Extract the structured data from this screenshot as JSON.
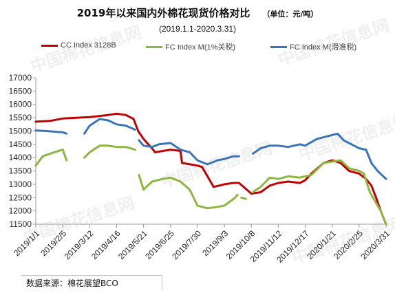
{
  "title": "2019年以来国内外棉花现货价格对比",
  "unit": "（单位：元/吨）",
  "subtitle": "(2019.1.1-2020.3.31)",
  "source": "数据来源：棉花展望BCO",
  "watermark": {
    "text": "中国棉花信息网",
    "site": "www.cottonchina.org.cn"
  },
  "chart_data": {
    "type": "line",
    "title": "2019年以来国内外棉花现货价格对比",
    "subtitle": "(2019.1.1-2020.3.31)",
    "unit": "元/吨",
    "x_tick_labels": [
      "2019/1/1",
      "2019/2/5",
      "2019/3/12",
      "2019/4/16",
      "2019/5/21",
      "2019/6/25",
      "2019/7/30",
      "2019/9/3",
      "2019/10/8",
      "2019/11/12",
      "2019/12/17",
      "2020/1/21",
      "2020/2/25",
      "2020/3/31"
    ],
    "ylim": [
      11500,
      17000
    ],
    "yticks": [
      11500,
      12000,
      12500,
      13000,
      13500,
      14000,
      14500,
      15000,
      15500,
      16000,
      16500,
      17000
    ],
    "grid": false,
    "legend_position": "top",
    "series": [
      {
        "name": "CC Index 3128B",
        "color": "#c00000",
        "points": [
          [
            "2019-01-01",
            15350
          ],
          [
            "2019-01-20",
            15380
          ],
          [
            "2019-02-05",
            15470
          ],
          [
            "2019-03-12",
            15520
          ],
          [
            "2019-04-05",
            15600
          ],
          [
            "2019-04-16",
            15650
          ],
          [
            "2019-04-28",
            15600
          ],
          [
            "2019-05-08",
            15450
          ],
          [
            "2019-05-14",
            15000
          ],
          [
            "2019-05-21",
            14700
          ],
          [
            "2019-06-01",
            14350
          ],
          [
            "2019-06-05",
            14200
          ],
          [
            "2019-06-25",
            14300
          ],
          [
            "2019-07-08",
            14250
          ],
          [
            "2019-07-10",
            13800
          ],
          [
            "2019-07-30",
            13700
          ],
          [
            "2019-08-05",
            13650
          ],
          [
            "2019-08-12",
            13300
          ],
          [
            "2019-08-20",
            12900
          ],
          [
            "2019-09-03",
            13000
          ],
          [
            "2019-09-15",
            13050
          ],
          [
            "2019-09-22",
            13050
          ],
          [
            "2019-09-28",
            12900
          ],
          [
            "2019-10-08",
            12650
          ],
          [
            "2019-10-20",
            12700
          ],
          [
            "2019-11-01",
            12950
          ],
          [
            "2019-11-12",
            13050
          ],
          [
            "2019-11-25",
            13100
          ],
          [
            "2019-12-10",
            13050
          ],
          [
            "2019-12-17",
            13150
          ],
          [
            "2019-12-25",
            13400
          ],
          [
            "2020-01-10",
            13800
          ],
          [
            "2020-01-21",
            13900
          ],
          [
            "2020-02-01",
            13800
          ],
          [
            "2020-02-12",
            13500
          ],
          [
            "2020-02-25",
            13400
          ],
          [
            "2020-03-05",
            13200
          ],
          [
            "2020-03-12",
            12950
          ],
          [
            "2020-03-18",
            12500
          ],
          [
            "2020-03-24",
            12000
          ],
          [
            "2020-03-31",
            11500
          ]
        ]
      },
      {
        "name": "FC Index M(1%关税)",
        "color": "#8db63e",
        "points": [
          [
            "2019-01-01",
            13700
          ],
          [
            "2019-01-10",
            14050
          ],
          [
            "2019-01-25",
            14200
          ],
          [
            "2019-02-05",
            14300
          ],
          [
            "2019-02-10",
            13900
          ],
          null,
          [
            "2019-03-05",
            14000
          ],
          [
            "2019-03-12",
            14200
          ],
          [
            "2019-03-25",
            14450
          ],
          [
            "2019-04-05",
            14450
          ],
          [
            "2019-04-16",
            14400
          ],
          [
            "2019-04-28",
            14400
          ],
          [
            "2019-05-10",
            14300
          ],
          null,
          [
            "2019-05-15",
            13350
          ],
          [
            "2019-05-21",
            12800
          ],
          [
            "2019-06-01",
            13100
          ],
          [
            "2019-06-15",
            13200
          ],
          [
            "2019-06-25",
            13250
          ],
          [
            "2019-07-08",
            13100
          ],
          [
            "2019-07-20",
            12800
          ],
          [
            "2019-07-30",
            12200
          ],
          [
            "2019-08-12",
            12100
          ],
          [
            "2019-08-25",
            12150
          ],
          [
            "2019-09-03",
            12200
          ],
          [
            "2019-09-15",
            12450
          ],
          [
            "2019-09-20",
            12600
          ],
          null,
          [
            "2019-09-25",
            12500
          ],
          [
            "2019-10-01",
            12450
          ],
          null,
          [
            "2019-10-10",
            12700
          ],
          [
            "2019-10-20",
            12900
          ],
          [
            "2019-11-01",
            13250
          ],
          [
            "2019-11-12",
            13200
          ],
          [
            "2019-11-25",
            13300
          ],
          [
            "2019-12-10",
            13250
          ],
          [
            "2019-12-17",
            13300
          ],
          [
            "2019-12-25",
            13350
          ],
          [
            "2020-01-10",
            13800
          ],
          [
            "2020-01-21",
            13850
          ],
          [
            "2020-02-01",
            13900
          ],
          [
            "2020-02-12",
            13600
          ],
          [
            "2020-02-25",
            13500
          ],
          [
            "2020-03-02",
            13400
          ],
          [
            "2020-03-10",
            12700
          ],
          [
            "2020-03-18",
            12300
          ],
          [
            "2020-03-24",
            12000
          ],
          [
            "2020-03-31",
            11500
          ]
        ]
      },
      {
        "name": "FC Index M(滑准税)",
        "color": "#3a74b7",
        "points": [
          [
            "2019-01-01",
            15020
          ],
          [
            "2019-01-15",
            15000
          ],
          [
            "2019-02-05",
            14950
          ],
          [
            "2019-02-10",
            14900
          ],
          null,
          [
            "2019-03-05",
            14900
          ],
          [
            "2019-03-12",
            15200
          ],
          [
            "2019-03-25",
            15450
          ],
          [
            "2019-04-05",
            15400
          ],
          [
            "2019-04-16",
            15250
          ],
          [
            "2019-04-28",
            15200
          ],
          [
            "2019-05-10",
            15050
          ],
          null,
          [
            "2019-05-15",
            14650
          ],
          [
            "2019-05-21",
            14450
          ],
          [
            "2019-06-01",
            14400
          ],
          [
            "2019-06-10",
            14500
          ],
          [
            "2019-06-25",
            14550
          ],
          [
            "2019-07-08",
            14300
          ],
          [
            "2019-07-20",
            14200
          ],
          [
            "2019-07-30",
            13900
          ],
          [
            "2019-08-12",
            13750
          ],
          [
            "2019-08-25",
            13900
          ],
          [
            "2019-09-03",
            13950
          ],
          [
            "2019-09-15",
            14050
          ],
          [
            "2019-09-22",
            14050
          ],
          null,
          [
            "2019-10-10",
            14150
          ],
          [
            "2019-10-20",
            14350
          ],
          [
            "2019-11-01",
            14450
          ],
          [
            "2019-11-12",
            14450
          ],
          [
            "2019-11-25",
            14400
          ],
          [
            "2019-12-10",
            14500
          ],
          [
            "2019-12-17",
            14450
          ],
          [
            "2020-01-01",
            14700
          ],
          [
            "2020-01-21",
            14850
          ],
          [
            "2020-01-28",
            14900
          ],
          [
            "2020-02-05",
            14650
          ],
          [
            "2020-02-15",
            14500
          ],
          [
            "2020-02-25",
            14350
          ],
          [
            "2020-03-05",
            14300
          ],
          [
            "2020-03-12",
            13800
          ],
          [
            "2020-03-20",
            13500
          ],
          [
            "2020-03-31",
            13200
          ]
        ]
      }
    ]
  }
}
